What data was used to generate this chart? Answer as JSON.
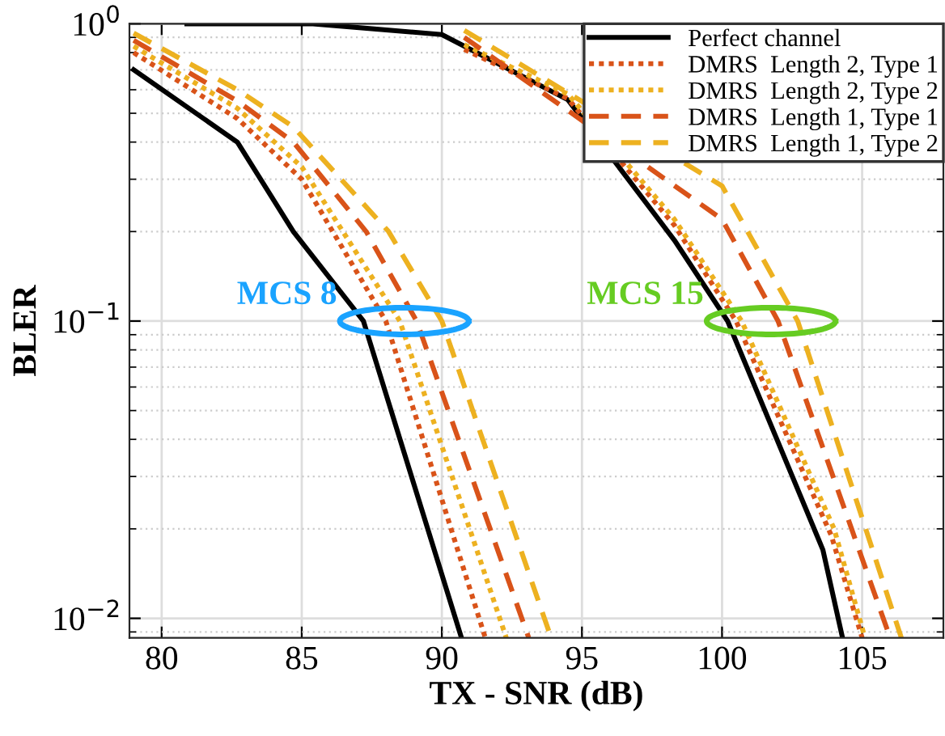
{
  "chart_data": {
    "type": "line",
    "xlabel": "TX - SNR (dB)",
    "ylabel": "BLER",
    "log": "y",
    "grid": true,
    "legend": "top right",
    "xlim": [
      78.85,
      107.9
    ],
    "ylim": [
      0.0086,
      1
    ],
    "xticks": [
      80,
      85,
      90,
      95,
      100,
      105
    ],
    "yticks": [
      {
        "value": 1,
        "label": "10$^{0}$"
      },
      {
        "value": 0.1,
        "label": "10$^{−1}$"
      },
      {
        "value": 0.01,
        "label": "10$^{−2}$"
      }
    ],
    "annotations": [
      {
        "text": "MCS 8",
        "x": 88.66,
        "y": 0.1
      },
      {
        "text": "MCS 15",
        "x": 101.75,
        "y": 0.1
      }
    ],
    "series": [
      {
        "name": "Perfect channel",
        "color": "#000000",
        "line_style": "solid",
        "x": [
          79,
          82.7,
          84.7,
          87.2,
          90.7
        ],
        "values": [
          0.7,
          0.4,
          0.2,
          0.1,
          0.0086
        ]
      },
      {
        "name": "DMRS  Length 2, Type 1",
        "color": "#d95319",
        "line_style": "dotted",
        "x": [
          79,
          82.7,
          85,
          88.0,
          91.55
        ],
        "values": [
          0.8,
          0.48,
          0.3,
          0.1,
          0.0086
        ]
      },
      {
        "name": "DMRS  Length 2, Type 2",
        "color": "#edb120",
        "line_style": "dotted",
        "x": [
          79,
          82.7,
          85,
          88.5,
          92.3
        ],
        "values": [
          0.84,
          0.52,
          0.33,
          0.1,
          0.0086
        ]
      },
      {
        "name": "DMRS  Length 1, Type 1",
        "color": "#d95319",
        "line_style": "dashed",
        "x": [
          79,
          82.7,
          84.7,
          87.3,
          89.1,
          93.1
        ],
        "values": [
          0.88,
          0.55,
          0.4,
          0.2,
          0.1,
          0.0086
        ]
      },
      {
        "name": "DMRS  Length 1, Type 2",
        "color": "#edb120",
        "line_style": "dashed",
        "x": [
          79,
          82.7,
          84.7,
          88.1,
          90.0,
          93.9
        ],
        "values": [
          0.93,
          0.6,
          0.45,
          0.2,
          0.1,
          0.0086
        ]
      },
      {
        "color": "#000000",
        "line_style": "solid",
        "x": [
          80.9,
          85.4,
          90.0,
          94.5,
          98.3,
          100.2,
          103.6,
          104.3
        ],
        "values": [
          1.0,
          1.0,
          0.92,
          0.555,
          0.187,
          0.1,
          0.017,
          0.0086
        ]
      },
      {
        "color": "#d95319",
        "line_style": "dotted",
        "x": [
          90.8,
          94.5,
          98.3,
          100.5,
          103.9,
          105.0
        ],
        "values": [
          0.82,
          0.56,
          0.21,
          0.1,
          0.019,
          0.0086
        ]
      },
      {
        "color": "#edb120",
        "line_style": "dotted",
        "x": [
          90.8,
          94.5,
          98.3,
          100.7,
          104.0,
          105.1
        ],
        "values": [
          0.85,
          0.58,
          0.22,
          0.1,
          0.02,
          0.0086
        ]
      },
      {
        "color": "#d95319",
        "line_style": "dashed",
        "x": [
          90.8,
          100,
          102.0,
          106.0
        ],
        "values": [
          0.9,
          0.22,
          0.1,
          0.0086
        ]
      },
      {
        "color": "#edb120",
        "line_style": "dashed",
        "x": [
          90.8,
          100,
          102.7,
          106.4
        ],
        "values": [
          0.95,
          0.285,
          0.1,
          0.0086
        ]
      }
    ]
  }
}
